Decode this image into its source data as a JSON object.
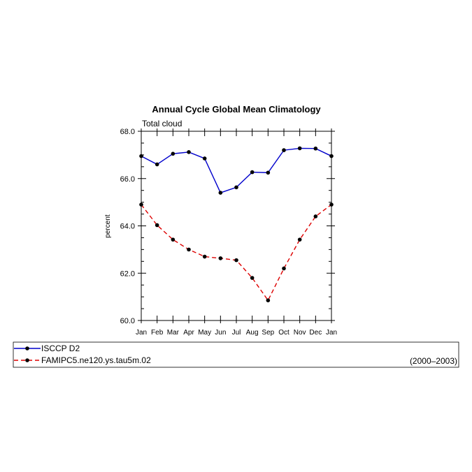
{
  "chart_data": {
    "type": "line",
    "title": "Annual Cycle Global Mean Climatology",
    "subtitle": "Total cloud",
    "xlabel": "",
    "ylabel": "percent",
    "categories": [
      "Jan",
      "Feb",
      "Mar",
      "Apr",
      "May",
      "Jun",
      "Jul",
      "Aug",
      "Sep",
      "Oct",
      "Nov",
      "Dec",
      "Jan"
    ],
    "ylim": [
      60.0,
      68.0
    ],
    "yticks": [
      "60.0",
      "62.0",
      "64.0",
      "66.0",
      "68.0"
    ],
    "series": [
      {
        "name": "ISCCP D2",
        "color": "#0000cc",
        "dash": "solid",
        "values": [
          66.95,
          66.6,
          67.05,
          67.12,
          66.85,
          65.4,
          65.63,
          66.27,
          66.25,
          67.2,
          67.28,
          67.27,
          66.95
        ]
      },
      {
        "name": "FAMIPC5.ne120.ys.tau5m.02",
        "color": "#dd0000",
        "dash": "dashed",
        "values": [
          64.9,
          64.03,
          63.42,
          63.0,
          62.7,
          62.63,
          62.55,
          61.8,
          60.85,
          62.2,
          63.42,
          64.4,
          64.9
        ]
      }
    ],
    "legend_note": "(2000–2003)",
    "legend_position": "bottom"
  }
}
